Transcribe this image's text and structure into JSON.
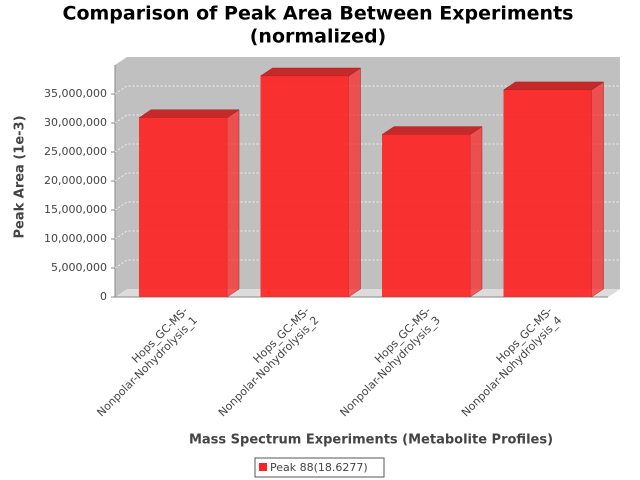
{
  "chart_data": {
    "type": "bar3d",
    "title": [
      "Comparison of Peak Area Between Experiments",
      "(normalized)"
    ],
    "x_label": "Mass Spectrum Experiments (Metabolite Profiles)",
    "y_label": "Peak Area (1e-3)",
    "categories": [
      "Hops_GC-MS-Nonpolar-Nohydrolysis_1",
      "Hops_GC-MS-Nonpolar-Nohydrolysis_2",
      "Hops_GC-MS-Nonpolar-Nohydrolysis_3",
      "Hops_GC-MS-Nonpolar-Nohydrolysis_4"
    ],
    "series": [
      {
        "name": "Peak 88(18.6277)",
        "color": "#ff2020",
        "values": [
          30900000,
          38100000,
          28000000,
          35700000
        ]
      }
    ],
    "ylim": [
      0,
      40000000
    ],
    "yticks": [
      0,
      {
        "value": 5000000,
        "label": "5,000,000"
      },
      {
        "value": 10000000,
        "label": "10,000,000"
      },
      {
        "value": 15000000,
        "label": "15,000,000"
      },
      {
        "value": 20000000,
        "label": "20,000,000"
      },
      {
        "value": 25000000,
        "label": "25,000,000"
      },
      {
        "value": 30000000,
        "label": "30,000,000"
      },
      {
        "value": 35000000,
        "label": "35,000,000"
      }
    ],
    "grid": true,
    "legend": "bottom"
  }
}
